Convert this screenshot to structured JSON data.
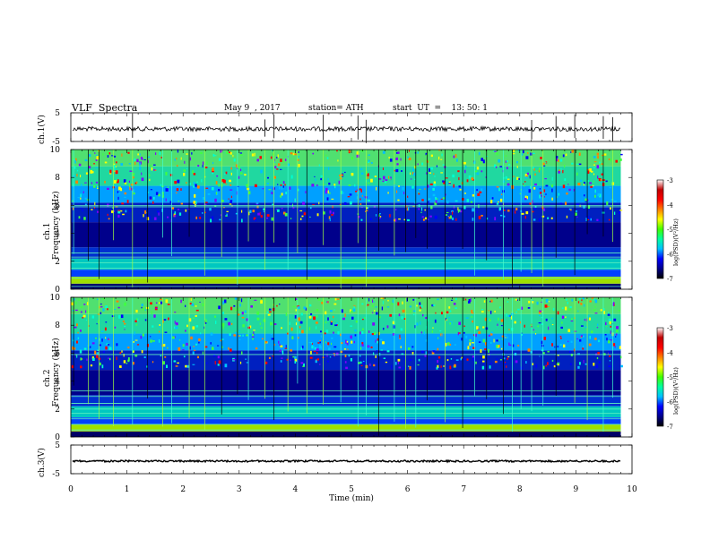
{
  "header": {
    "title": "VLF  Spectra",
    "date": "May 9  , 2017",
    "station": "station= ATH",
    "start": "start  UT  =    13: 50: 1"
  },
  "panels": {
    "ch1_waveform": {
      "ylabel": "ch.1(V)",
      "yticks": [
        "5",
        "-5"
      ],
      "ylim": [
        -5,
        5
      ]
    },
    "ch1_spectrogram": {
      "ylabel_line1": "ch.1",
      "ylabel_line2": "Frequency  (kHz)",
      "yticks": [
        "0",
        "2",
        "4",
        "6",
        "8",
        "10"
      ]
    },
    "ch2_spectrogram": {
      "ylabel_line1": "ch.2",
      "ylabel_line2": "Frequency  (kHz)",
      "yticks": [
        "0",
        "2",
        "4",
        "6",
        "8",
        "10"
      ]
    },
    "ch3_waveform": {
      "ylabel": "ch.3(V)",
      "yticks": [
        "5",
        "-5"
      ],
      "ylim": [
        -5,
        5
      ]
    }
  },
  "colorbar": {
    "label": "log(PSD)(V²/Hz)",
    "ticks": [
      "-3",
      "-4",
      "-5",
      "-6",
      "-7"
    ],
    "colors": [
      "#000000",
      "#00008b",
      "#0000ff",
      "#00bfff",
      "#00ffa0",
      "#40ff00",
      "#ffff00",
      "#ff8000",
      "#ff0000",
      "#c00000",
      "#ffffff"
    ]
  },
  "chart_data": {
    "type": "heatmap",
    "xlabel": "Time  (min)",
    "xlim": [
      0,
      10
    ],
    "xticks": [
      "0",
      "1",
      "2",
      "3",
      "4",
      "5",
      "6",
      "7",
      "8",
      "9",
      "10"
    ],
    "data_end_min": 9.8,
    "frequency_range_khz": [
      0,
      10
    ],
    "psd_range_log": [
      -7,
      -3
    ],
    "ch1_waveform_mean_v": 0,
    "ch3_waveform_mean_v": 0
  }
}
